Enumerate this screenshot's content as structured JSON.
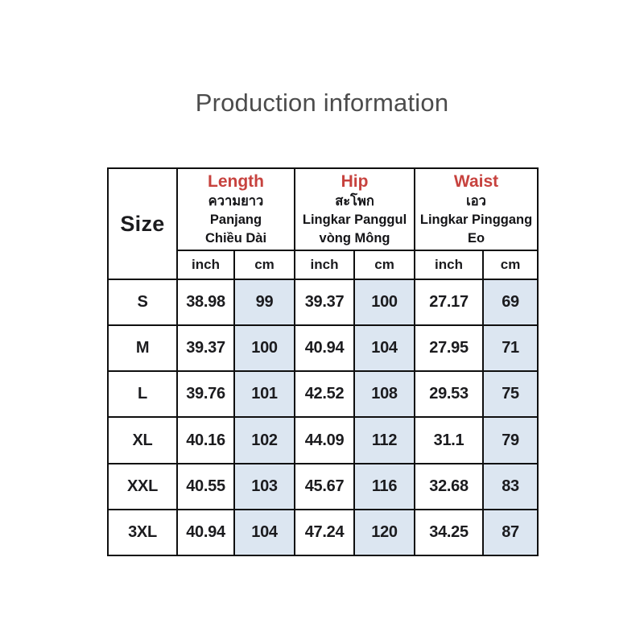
{
  "title": "Production information",
  "colors": {
    "accent_red": "#c7423e",
    "cm_cell_bg": "#dce6f1",
    "border": "#0f0f0f",
    "title_gray": "#4c4c4c",
    "text": "#1b1b1e"
  },
  "table": {
    "size_header": "Size",
    "groups": [
      {
        "en": "Length",
        "th": "ความยาว",
        "id": "Panjang",
        "vi": "Chiều Dài"
      },
      {
        "en": "Hip",
        "th": "สะโพก",
        "id": "Lingkar Panggul",
        "vi": "vòng Mông"
      },
      {
        "en": "Waist",
        "th": "เอว",
        "id": "Lingkar Pinggang",
        "vi": "Eo"
      }
    ],
    "unit_inch": "inch",
    "unit_cm": "cm",
    "rows": [
      {
        "size": "S",
        "values": [
          "38.98",
          "99",
          "39.37",
          "100",
          "27.17",
          "69"
        ]
      },
      {
        "size": "M",
        "values": [
          "39.37",
          "100",
          "40.94",
          "104",
          "27.95",
          "71"
        ]
      },
      {
        "size": "L",
        "values": [
          "39.76",
          "101",
          "42.52",
          "108",
          "29.53",
          "75"
        ]
      },
      {
        "size": "XL",
        "values": [
          "40.16",
          "102",
          "44.09",
          "112",
          "31.1",
          "79"
        ]
      },
      {
        "size": "XXL",
        "values": [
          "40.55",
          "103",
          "45.67",
          "116",
          "32.68",
          "83"
        ]
      },
      {
        "size": "3XL",
        "values": [
          "40.94",
          "104",
          "47.24",
          "120",
          "34.25",
          "87"
        ]
      }
    ]
  },
  "chart_data": {
    "type": "table",
    "title": "Production information",
    "columns": [
      "Size",
      "Length (inch)",
      "Length (cm)",
      "Hip (inch)",
      "Hip (cm)",
      "Waist (inch)",
      "Waist (cm)"
    ],
    "rows": [
      [
        "S",
        38.98,
        99,
        39.37,
        100,
        27.17,
        69
      ],
      [
        "M",
        39.37,
        100,
        40.94,
        104,
        27.95,
        71
      ],
      [
        "L",
        39.76,
        101,
        42.52,
        108,
        29.53,
        75
      ],
      [
        "XL",
        40.16,
        102,
        44.09,
        112,
        31.1,
        79
      ],
      [
        "XXL",
        40.55,
        103,
        45.67,
        116,
        32.68,
        83
      ],
      [
        "3XL",
        40.94,
        104,
        47.24,
        120,
        34.25,
        87
      ]
    ]
  }
}
